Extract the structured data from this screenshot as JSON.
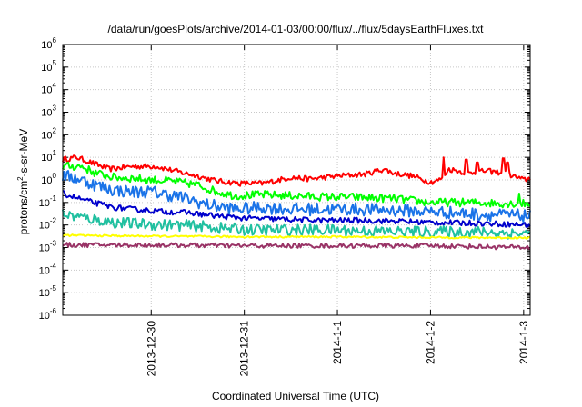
{
  "chart_data": {
    "type": "line",
    "title": "/data/run/goesPlots/archive/2014-01-03/00:00/flux/../flux/5daysEarthFluxes.txt",
    "xlabel": "Coordinated Universal Time (UTC)",
    "ylabel": {
      "base": "protons/cm",
      "sup": "2",
      "rest": "-s-sr-MeV"
    },
    "yscale": "log",
    "ylim_exponents": [
      -6,
      6
    ],
    "y_ticks": [
      {
        "base": "10",
        "exp": "-6"
      },
      {
        "base": "10",
        "exp": "-5"
      },
      {
        "base": "10",
        "exp": "-4"
      },
      {
        "base": "10",
        "exp": "-3"
      },
      {
        "base": "10",
        "exp": "-2"
      },
      {
        "base": "10",
        "exp": "-1"
      },
      {
        "base": "10",
        "exp": "0"
      },
      {
        "base": "10",
        "exp": "1"
      },
      {
        "base": "10",
        "exp": "2"
      },
      {
        "base": "10",
        "exp": "3"
      },
      {
        "base": "10",
        "exp": "4"
      },
      {
        "base": "10",
        "exp": "5"
      },
      {
        "base": "10",
        "exp": "6"
      }
    ],
    "x_range_days": [
      -0.95,
      4.07
    ],
    "x_ticks": [
      {
        "label": "2013-12-30",
        "day": 0
      },
      {
        "label": "2013-12-31",
        "day": 1
      },
      {
        "label": "2014-1-1",
        "day": 2
      },
      {
        "label": "2014-1-2",
        "day": 3
      },
      {
        "label": "2014-1-3",
        "day": 4
      }
    ],
    "grid": true,
    "series": [
      {
        "color": "#ff0000",
        "noise": 0.12,
        "spikes": [
          [
            3.14,
            10
          ],
          [
            3.38,
            8
          ],
          [
            3.5,
            6
          ],
          [
            3.78,
            9
          ],
          [
            3.83,
            6
          ]
        ],
        "points": [
          [
            -0.95,
            8
          ],
          [
            -0.8,
            10
          ],
          [
            -0.6,
            5
          ],
          [
            -0.45,
            3
          ],
          [
            -0.2,
            4
          ],
          [
            0.05,
            4
          ],
          [
            0.35,
            2
          ],
          [
            0.5,
            1.5
          ],
          [
            0.7,
            0.9
          ],
          [
            0.95,
            0.7
          ],
          [
            1.2,
            0.7
          ],
          [
            1.5,
            1.3
          ],
          [
            1.7,
            1.1
          ],
          [
            2.0,
            1.5
          ],
          [
            2.3,
            1.8
          ],
          [
            2.5,
            3
          ],
          [
            2.6,
            2
          ],
          [
            2.8,
            1.5
          ],
          [
            3.0,
            0.8
          ],
          [
            3.1,
            1
          ],
          [
            3.2,
            3
          ],
          [
            3.4,
            2
          ],
          [
            3.6,
            2.5
          ],
          [
            3.8,
            2
          ],
          [
            4.0,
            1
          ],
          [
            4.07,
            1.2
          ]
        ]
      },
      {
        "color": "#00ff00",
        "noise": 0.18,
        "spikes": [
          [
            3.95,
            0.25
          ]
        ],
        "points": [
          [
            -0.95,
            4
          ],
          [
            -0.75,
            4
          ],
          [
            -0.6,
            2
          ],
          [
            -0.4,
            1.3
          ],
          [
            -0.2,
            1.2
          ],
          [
            0.0,
            1.0
          ],
          [
            0.2,
            0.9
          ],
          [
            0.5,
            0.6
          ],
          [
            0.7,
            0.3
          ],
          [
            0.9,
            0.2
          ],
          [
            1.2,
            0.22
          ],
          [
            1.5,
            0.2
          ],
          [
            1.8,
            0.18
          ],
          [
            2.2,
            0.17
          ],
          [
            2.6,
            0.15
          ],
          [
            3.0,
            0.1
          ],
          [
            3.4,
            0.1
          ],
          [
            3.8,
            0.09
          ],
          [
            4.07,
            0.09
          ]
        ]
      },
      {
        "color": "#1a73e8",
        "noise": 0.28,
        "spikes": [],
        "points": [
          [
            -0.95,
            1.5
          ],
          [
            -0.8,
            1.2
          ],
          [
            -0.6,
            0.6
          ],
          [
            -0.4,
            0.35
          ],
          [
            -0.2,
            0.3
          ],
          [
            0.0,
            0.3
          ],
          [
            0.3,
            0.18
          ],
          [
            0.6,
            0.08
          ],
          [
            0.9,
            0.05
          ],
          [
            1.2,
            0.06
          ],
          [
            1.5,
            0.05
          ],
          [
            1.8,
            0.05
          ],
          [
            2.2,
            0.05
          ],
          [
            2.6,
            0.045
          ],
          [
            3.0,
            0.04
          ],
          [
            3.5,
            0.03
          ],
          [
            4.07,
            0.025
          ]
        ]
      },
      {
        "color": "#0000cc",
        "noise": 0.12,
        "spikes": [],
        "points": [
          [
            -0.95,
            0.25
          ],
          [
            -0.7,
            0.12
          ],
          [
            -0.4,
            0.06
          ],
          [
            -0.2,
            0.05
          ],
          [
            0.1,
            0.04
          ],
          [
            0.4,
            0.035
          ],
          [
            0.7,
            0.025
          ],
          [
            1.0,
            0.02
          ],
          [
            1.4,
            0.018
          ],
          [
            1.8,
            0.016
          ],
          [
            2.2,
            0.016
          ],
          [
            2.6,
            0.015
          ],
          [
            3.0,
            0.013
          ],
          [
            3.5,
            0.012
          ],
          [
            4.07,
            0.01
          ]
        ]
      },
      {
        "color": "#20c0a0",
        "noise": 0.25,
        "spikes": [],
        "points": [
          [
            -0.95,
            0.03
          ],
          [
            -0.7,
            0.02
          ],
          [
            -0.4,
            0.013
          ],
          [
            -0.1,
            0.011
          ],
          [
            0.2,
            0.01
          ],
          [
            0.5,
            0.009
          ],
          [
            0.8,
            0.007
          ],
          [
            1.1,
            0.006
          ],
          [
            1.5,
            0.006
          ],
          [
            1.9,
            0.006
          ],
          [
            2.3,
            0.0055
          ],
          [
            2.7,
            0.005
          ],
          [
            3.1,
            0.005
          ],
          [
            3.5,
            0.005
          ],
          [
            4.07,
            0.004
          ]
        ]
      },
      {
        "color": "#ffff00",
        "noise": 0.04,
        "spikes": [],
        "points": [
          [
            -0.95,
            0.0035
          ],
          [
            0.0,
            0.0032
          ],
          [
            1.0,
            0.003
          ],
          [
            2.0,
            0.003
          ],
          [
            3.0,
            0.0028
          ],
          [
            4.07,
            0.0027
          ]
        ]
      },
      {
        "color": "#993366",
        "noise": 0.1,
        "spikes": [],
        "points": [
          [
            -0.95,
            0.0013
          ],
          [
            0.0,
            0.0013
          ],
          [
            1.0,
            0.0012
          ],
          [
            2.0,
            0.0012
          ],
          [
            3.0,
            0.0012
          ],
          [
            4.07,
            0.001
          ]
        ]
      }
    ]
  }
}
